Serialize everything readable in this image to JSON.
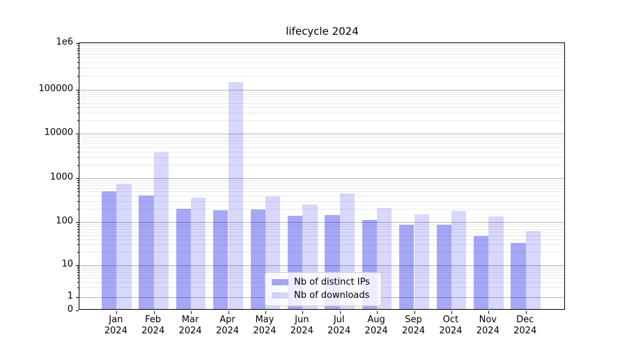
{
  "chart_data": {
    "type": "bar",
    "title": "lifecycle 2024",
    "categories": [
      "Jan 2024",
      "Feb 2024",
      "Mar 2024",
      "Apr 2024",
      "May 2024",
      "Jun 2024",
      "Jul 2024",
      "Aug 2024",
      "Sep 2024",
      "Oct 2024",
      "Nov 2024",
      "Dec 2024"
    ],
    "category_months": [
      "Jan",
      "Feb",
      "Mar",
      "Apr",
      "May",
      "Jun",
      "Jul",
      "Aug",
      "Sep",
      "Oct",
      "Nov",
      "Dec"
    ],
    "category_year": "2024",
    "series": [
      {
        "name": "Nb of distinct IPs",
        "key": "distinct-ips",
        "color_blended": "#a6a6f8",
        "color_rgba": "rgba(10,10,235,0.36)",
        "values": [
          500,
          400,
          200,
          185,
          190,
          140,
          145,
          110,
          87,
          85,
          48,
          32
        ]
      },
      {
        "name": "Nb of downloads",
        "key": "downloads",
        "color_blended": "#d8d8fc",
        "color_rgba": "rgba(10,10,235,0.16)",
        "values": [
          740,
          3850,
          355,
          145000,
          390,
          250,
          455,
          205,
          148,
          178,
          134,
          61
        ]
      }
    ],
    "yscale": "symlog",
    "ylim": [
      0,
      1000000
    ],
    "y_ticks": [
      {
        "value": 1000000,
        "label": "1e6"
      },
      {
        "value": 100000,
        "label": "100000"
      },
      {
        "value": 10000,
        "label": "10000"
      },
      {
        "value": 1000,
        "label": "1000"
      },
      {
        "value": 100,
        "label": "100"
      },
      {
        "value": 10,
        "label": "10"
      },
      {
        "value": 1,
        "label": "1"
      },
      {
        "value": 0,
        "label": "0"
      }
    ],
    "grid": true,
    "gridline_major_color": "#b4b4b4",
    "gridline_minor_color": "#e9e9e9",
    "legend_position": "lower center"
  }
}
